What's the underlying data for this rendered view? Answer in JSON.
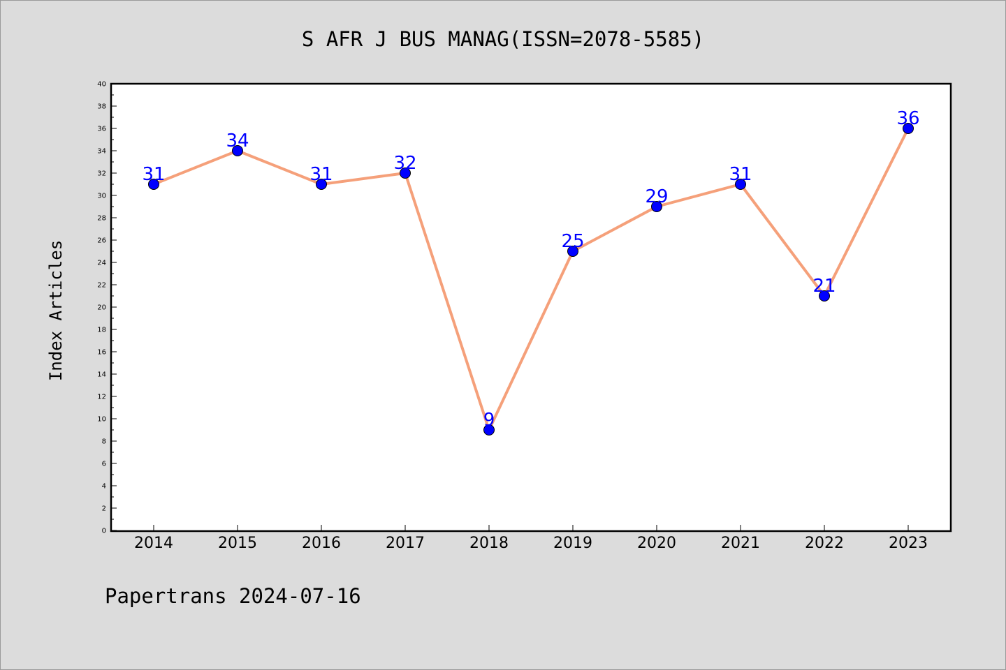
{
  "footer": "Papertrans 2024-07-16",
  "colors": {
    "background": "#dcdcdc",
    "plot_background": "#ffffff",
    "line": "#f5a07a",
    "marker": "#0000ff",
    "label": "#0000ff"
  },
  "chart_data": {
    "type": "line",
    "title": "S AFR J BUS MANAG(ISSN=2078-5585)",
    "xlabel": "",
    "ylabel": "Index Articles",
    "categories": [
      "2014",
      "2015",
      "2016",
      "2017",
      "2018",
      "2019",
      "2020",
      "2021",
      "2022",
      "2023"
    ],
    "values": [
      31,
      34,
      31,
      32,
      9,
      25,
      29,
      31,
      21,
      36
    ],
    "value_labels": [
      "31",
      "34",
      "31",
      "32",
      "9",
      "25",
      "29",
      "31",
      "21",
      "36"
    ],
    "ylim": [
      0,
      40
    ],
    "yticks": [
      "0",
      "2",
      "4",
      "6",
      "8",
      "10",
      "12",
      "14",
      "16",
      "18",
      "20",
      "22",
      "24",
      "26",
      "28",
      "30",
      "32",
      "34",
      "36",
      "38",
      "40"
    ],
    "grid": false,
    "legend": "none"
  }
}
